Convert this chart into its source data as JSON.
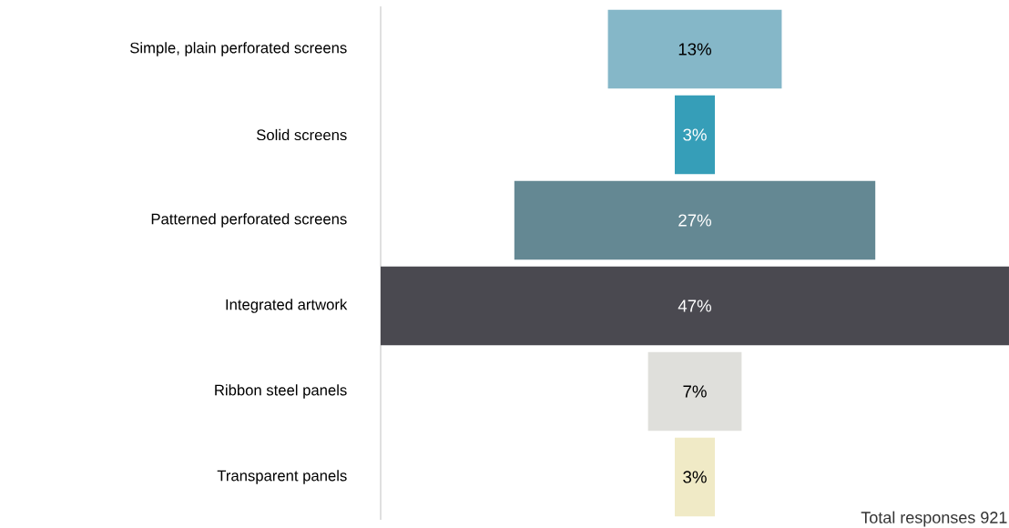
{
  "chart_data": {
    "type": "other",
    "categories": [
      "Simple, plain perforated screens",
      "Solid screens",
      "Patterned perforated screens",
      "Integrated artwork",
      "Ribbon steel panels",
      "Transparent panels"
    ],
    "values": [
      13,
      3,
      27,
      47,
      7,
      3
    ],
    "value_labels": [
      "13%",
      "3%",
      "27%",
      "47%",
      "7%",
      "3%"
    ],
    "colors": [
      "#85b7c8",
      "#369eb8",
      "#648893",
      "#4a4950",
      "#dfdfdb",
      "#f0eac6"
    ],
    "annotations": [
      "Total responses 921"
    ]
  }
}
